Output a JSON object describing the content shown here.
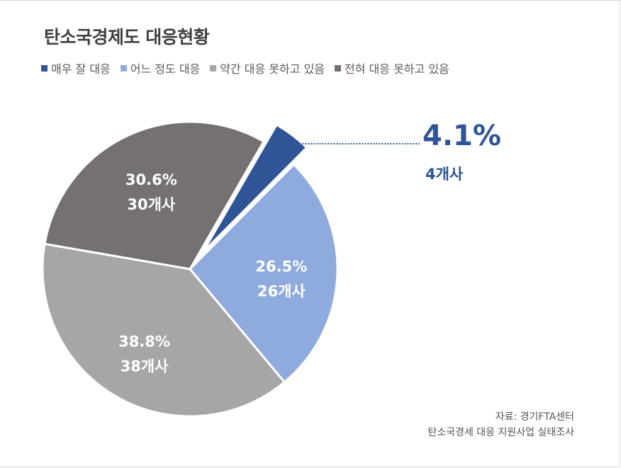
{
  "chart_data": {
    "type": "pie",
    "title": "탄소국경제도 대응현황",
    "series": [
      {
        "name": "매우 잘 대응",
        "value": 4.1,
        "pct_label": "4.1%",
        "count_label": "4개사",
        "color": "#2f5597"
      },
      {
        "name": "어느 정도 대응",
        "value": 26.5,
        "pct_label": "26.5%",
        "count_label": "26개사",
        "color": "#8faadc"
      },
      {
        "name": "약간 대응 못하고 있음",
        "value": 38.8,
        "pct_label": "38.8%",
        "count_label": "38개사",
        "color": "#a6a6a6"
      },
      {
        "name": "전혀 대응 못하고 있음",
        "value": 30.6,
        "pct_label": "30.6%",
        "count_label": "30개사",
        "color": "#767171"
      }
    ],
    "legend_position": "top-left"
  },
  "source": {
    "line1": "자료: 경기FTA센터",
    "line2": "탄소국경세 대응 지원사업 실태조사"
  }
}
